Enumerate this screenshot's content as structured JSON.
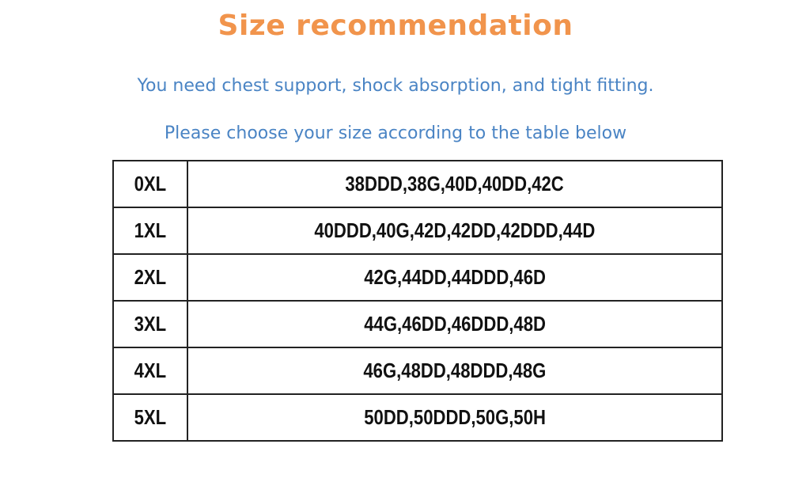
{
  "title": "Size recommendation",
  "subtitle_1": "You need chest support, shock absorption, and tight fitting.",
  "subtitle_2": "Please choose your size according to the table below",
  "colors": {
    "title": "#f1944c",
    "subtitle": "#4a84c4",
    "table_text": "#111111"
  },
  "table": {
    "rows": [
      {
        "size": "0XL",
        "bra_sizes": "38DDD,38G,40D,40DD,42C"
      },
      {
        "size": "1XL",
        "bra_sizes": "40DDD,40G,42D,42DD,42DDD,44D"
      },
      {
        "size": "2XL",
        "bra_sizes": "42G,44DD,44DDD,46D"
      },
      {
        "size": "3XL",
        "bra_sizes": "44G,46DD,46DDD,48D"
      },
      {
        "size": "4XL",
        "bra_sizes": "46G,48DD,48DDD,48G"
      },
      {
        "size": "5XL",
        "bra_sizes": "50DD,50DDD,50G,50H"
      }
    ]
  }
}
